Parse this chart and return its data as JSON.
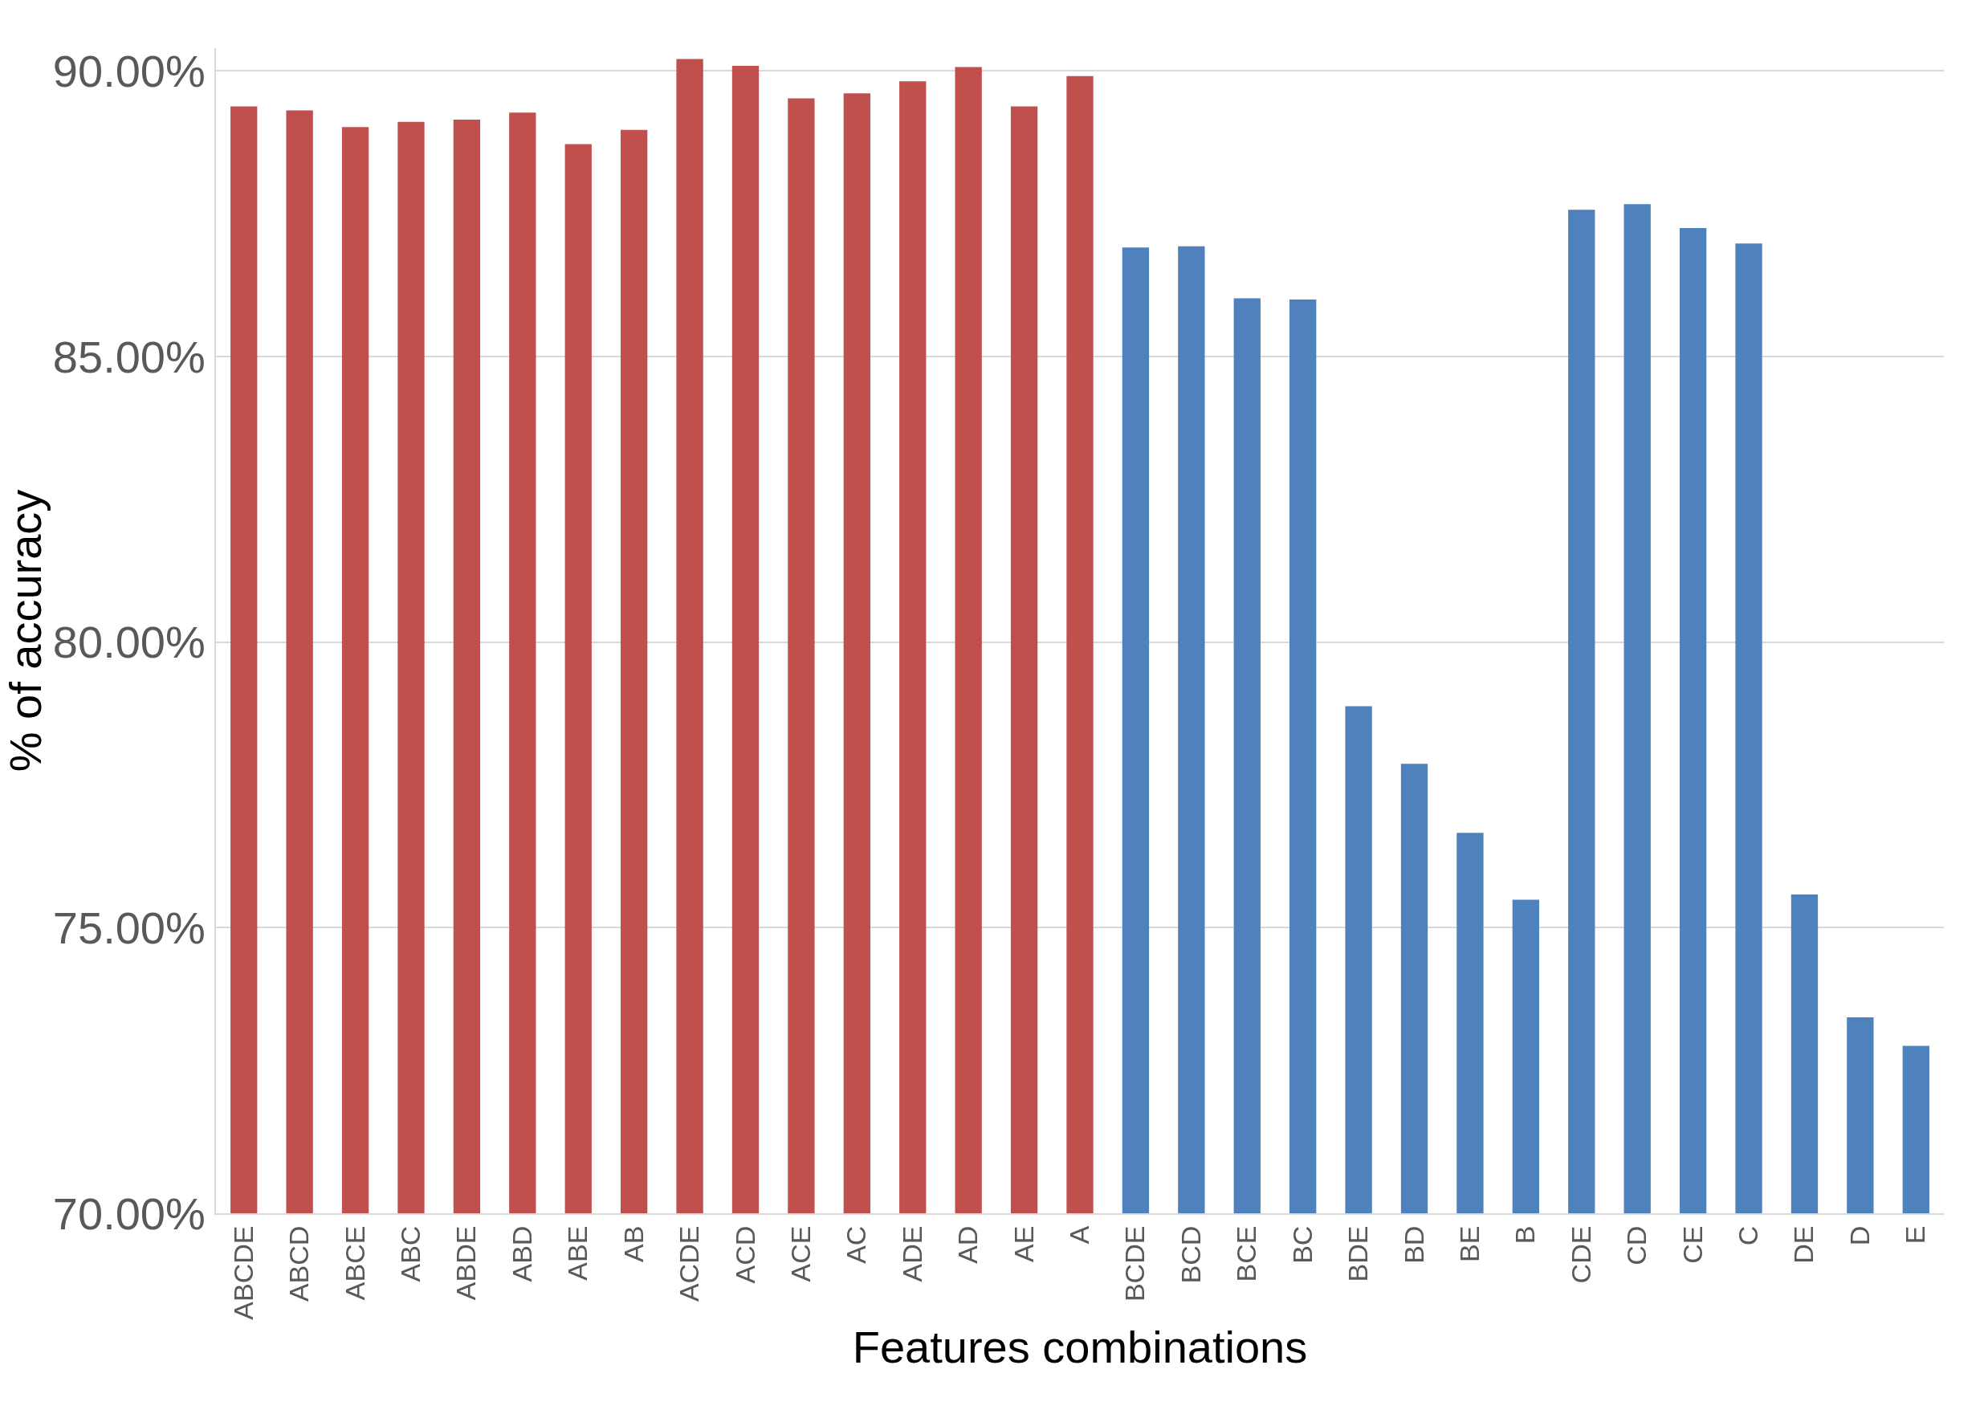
{
  "chart_data": {
    "type": "bar",
    "xlabel": "Features combinations",
    "ylabel": "% of accuracy",
    "categories": [
      "ABCDE",
      "ABCD",
      "ABCE",
      "ABC",
      "ABDE",
      "ABD",
      "ABE",
      "AB",
      "ACDE",
      "ACD",
      "ACE",
      "AC",
      "ADE",
      "AD",
      "AE",
      "A",
      "BCDE",
      "BCD",
      "BCE",
      "BC",
      "BDE",
      "BD",
      "BE",
      "B",
      "CDE",
      "CD",
      "CE",
      "C",
      "DE",
      "D",
      "E"
    ],
    "values": [
      89.38,
      89.31,
      89.02,
      89.11,
      89.15,
      89.27,
      88.72,
      88.97,
      90.21,
      90.09,
      89.52,
      89.61,
      89.82,
      90.07,
      89.38,
      89.91,
      86.91,
      86.93,
      86.02,
      86.0,
      78.88,
      77.87,
      76.66,
      75.49,
      87.57,
      87.67,
      87.25,
      86.98,
      75.58,
      73.43,
      72.93
    ],
    "colors": [
      "#c0504d",
      "#c0504d",
      "#c0504d",
      "#c0504d",
      "#c0504d",
      "#c0504d",
      "#c0504d",
      "#c0504d",
      "#c0504d",
      "#c0504d",
      "#c0504d",
      "#c0504d",
      "#c0504d",
      "#c0504d",
      "#c0504d",
      "#c0504d",
      "#4f81bd",
      "#4f81bd",
      "#4f81bd",
      "#4f81bd",
      "#4f81bd",
      "#4f81bd",
      "#4f81bd",
      "#4f81bd",
      "#4f81bd",
      "#4f81bd",
      "#4f81bd",
      "#4f81bd",
      "#4f81bd",
      "#4f81bd",
      "#4f81bd"
    ],
    "ylim": [
      70,
      90.4
    ],
    "yticks": [
      {
        "value": 70,
        "label": "70.00%"
      },
      {
        "value": 75,
        "label": "75.00%"
      },
      {
        "value": 80,
        "label": "80.00%"
      },
      {
        "value": 85,
        "label": "85.00%"
      },
      {
        "value": 90,
        "label": "90.00%"
      }
    ],
    "grid": "y"
  }
}
